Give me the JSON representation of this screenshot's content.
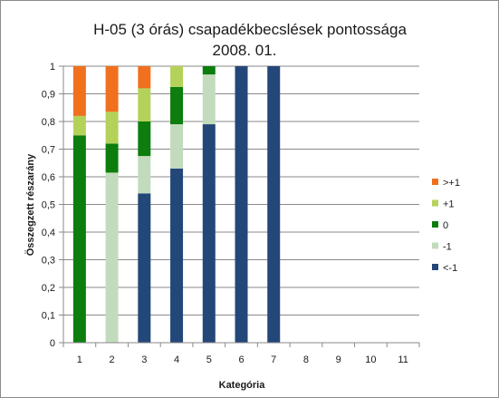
{
  "chart_data": {
    "type": "bar",
    "stacked": true,
    "title_line1": "H-05 (3 órás) csapadékbecslések pontossága",
    "title_line2": "2008. 01.",
    "xlabel": "Kategória",
    "ylabel": "Összegzett részarány",
    "categories": [
      "1",
      "2",
      "3",
      "4",
      "5",
      "6",
      "7",
      "8",
      "9",
      "10",
      "11"
    ],
    "ylim": [
      0,
      1
    ],
    "yticks": [
      "0",
      "0,1",
      "0,2",
      "0,3",
      "0,4",
      "0,5",
      "0,6",
      "0,7",
      "0,8",
      "0,9",
      "1"
    ],
    "legend_position": "right",
    "series": [
      {
        "name": "<-1",
        "color": "#24477a",
        "values": [
          0,
          0,
          0.54,
          0.63,
          0.79,
          1.0,
          1.0,
          0,
          0,
          0,
          0
        ]
      },
      {
        "name": "-1",
        "color": "#c3dbbd",
        "values": [
          0,
          0.615,
          0.135,
          0.16,
          0.18,
          0,
          0,
          0,
          0,
          0,
          0
        ]
      },
      {
        "name": "0",
        "color": "#0d7d0d",
        "values": [
          0.75,
          0.105,
          0.125,
          0.135,
          0.03,
          0,
          0,
          0,
          0,
          0,
          0
        ]
      },
      {
        "name": "+1",
        "color": "#b4d25a",
        "values": [
          0.07,
          0.115,
          0.12,
          0.075,
          0,
          0,
          0,
          0,
          0,
          0,
          0
        ]
      },
      {
        "name": ">+1",
        "color": "#f0701e",
        "values": [
          0.18,
          0.165,
          0.08,
          0,
          0,
          0,
          0,
          0,
          0,
          0,
          0
        ]
      }
    ],
    "legend_order": [
      ">+1",
      "+1",
      "0",
      "-1",
      "<-1"
    ]
  }
}
